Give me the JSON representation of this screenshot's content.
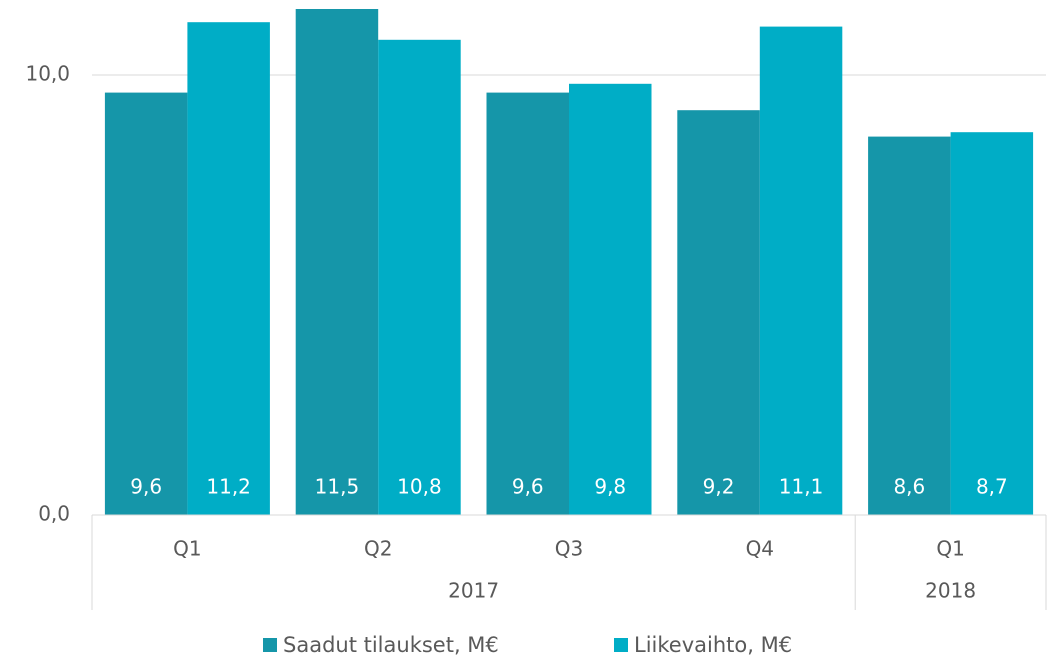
{
  "chart_data": {
    "type": "bar",
    "categories": [
      "Q1",
      "Q2",
      "Q3",
      "Q4",
      "Q1"
    ],
    "groups": [
      {
        "label": "2017",
        "span": 4
      },
      {
        "label": "2018",
        "span": 1
      }
    ],
    "series": [
      {
        "name": "Saadut tilaukset, M€",
        "color": "#1596a9",
        "values": [
          9.6,
          11.5,
          9.6,
          9.2,
          8.6
        ],
        "value_labels": [
          "9,6",
          "11,5",
          "9,6",
          "9,2",
          "8,6"
        ]
      },
      {
        "name": "Liikevaihto, M€",
        "color": "#00adc6",
        "values": [
          11.2,
          10.8,
          9.8,
          11.1,
          8.7
        ],
        "value_labels": [
          "11,2",
          "10,8",
          "9,8",
          "11,1",
          "8,7"
        ]
      }
    ],
    "ylim": [
      0,
      11.7
    ],
    "yticks": [
      {
        "value": 0,
        "label": "0,0"
      },
      {
        "value": 10,
        "label": "10,0"
      }
    ],
    "grid": true,
    "legend": "bottom"
  }
}
